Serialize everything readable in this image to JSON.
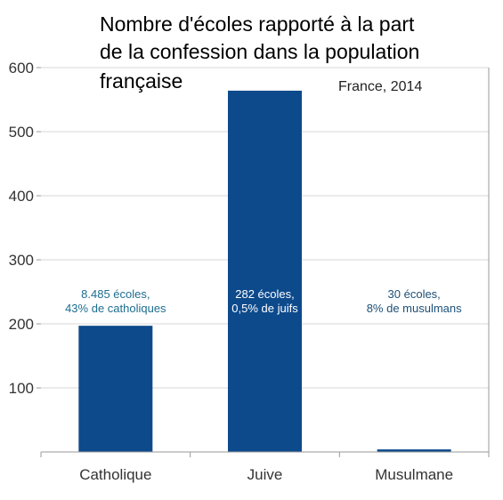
{
  "chart_data": {
    "type": "bar",
    "title_lines": [
      "Nombre d'écoles rapporté à la part",
      "de la confession dans la population",
      "française"
    ],
    "subtitle": "France, 2014",
    "categories": [
      "Catholique",
      "Juive",
      "Musulmane"
    ],
    "values": [
      197,
      564,
      4
    ],
    "ylim": [
      0,
      600
    ],
    "yticks": [
      100,
      200,
      300,
      400,
      500,
      600
    ],
    "grid": "horizontal",
    "bar_color": "#0d4a8c",
    "data_labels": [
      {
        "line1": "8.485 écoles,",
        "line2": "43% de catholiques",
        "color": "#1d6e8f"
      },
      {
        "line1": "282 écoles,",
        "line2": "0,5% de juifs",
        "color": "#ffffff"
      },
      {
        "line1": "30 écoles,",
        "line2": "8% de musulmans",
        "color": "#1d4f78"
      }
    ]
  }
}
